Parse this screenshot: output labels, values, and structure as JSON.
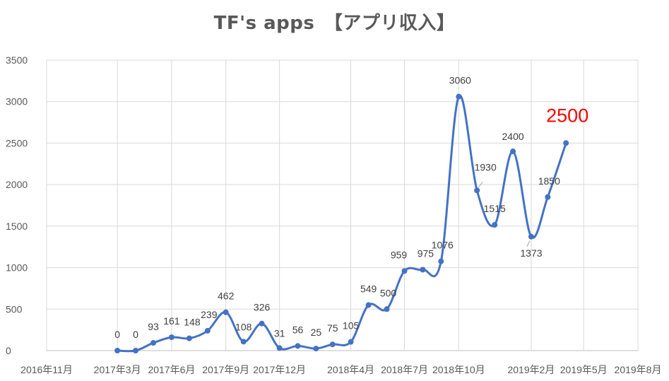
{
  "chart_data": {
    "type": "line",
    "title": "TF's apps　【アプリ収入】",
    "xlabel": "",
    "ylabel": "",
    "ylim": [
      0,
      3500
    ],
    "yticks": [
      "0",
      "500",
      "1000",
      "1500",
      "2000",
      "2500",
      "3000",
      "3500"
    ],
    "xticks": [
      "2016年11月",
      "2017年3月",
      "2017年6月",
      "2017年9月",
      "2017年12月",
      "2018年4月",
      "2018年7月",
      "2018年10月",
      "2019年2月",
      "2019年5月",
      "2019年8月"
    ],
    "grid": true,
    "series": [
      {
        "color": "#4472c4",
        "points": [
          {
            "x": "2017-03-01",
            "y": 0,
            "label": "0"
          },
          {
            "x": "2017-04-01",
            "y": 0,
            "label": "0"
          },
          {
            "x": "2017-05-01",
            "y": 93,
            "label": "93"
          },
          {
            "x": "2017-06-01",
            "y": 161,
            "label": "161"
          },
          {
            "x": "2017-07-01",
            "y": 148,
            "label": "148"
          },
          {
            "x": "2017-08-01",
            "y": 239,
            "label": "239"
          },
          {
            "x": "2017-09-01",
            "y": 462,
            "label": "462"
          },
          {
            "x": "2017-10-01",
            "y": 108,
            "label": "108"
          },
          {
            "x": "2017-11-01",
            "y": 326,
            "label": "326"
          },
          {
            "x": "2017-12-01",
            "y": 31,
            "label": "31"
          },
          {
            "x": "2018-01-01",
            "y": 56,
            "label": "56"
          },
          {
            "x": "2018-02-01",
            "y": 25,
            "label": "25"
          },
          {
            "x": "2018-03-01",
            "y": 75,
            "label": "75"
          },
          {
            "x": "2018-04-01",
            "y": 105,
            "label": "105"
          },
          {
            "x": "2018-05-01",
            "y": 549,
            "label": "549"
          },
          {
            "x": "2018-06-01",
            "y": 500,
            "label": "500"
          },
          {
            "x": "2018-07-01",
            "y": 959,
            "label": "959"
          },
          {
            "x": "2018-08-01",
            "y": 975,
            "label": "975"
          },
          {
            "x": "2018-09-01",
            "y": 1076,
            "label": "1076"
          },
          {
            "x": "2018-10-01",
            "y": 3060,
            "label": "3060"
          },
          {
            "x": "2018-11-01",
            "y": 1930,
            "label": "1930"
          },
          {
            "x": "2018-12-01",
            "y": 1515,
            "label": "1515"
          },
          {
            "x": "2019-01-01",
            "y": 2400,
            "label": "2400"
          },
          {
            "x": "2019-02-01",
            "y": 1373,
            "label": "1373"
          },
          {
            "x": "2019-03-01",
            "y": 1850,
            "label": "1850"
          },
          {
            "x": "2019-04-01",
            "y": 2500,
            "label": "2500",
            "highlight": true
          }
        ]
      }
    ]
  },
  "colors": {
    "line": "#4472c4",
    "highlight": "#ff0000",
    "grid": "#d9d9d9",
    "text": "#595959"
  }
}
